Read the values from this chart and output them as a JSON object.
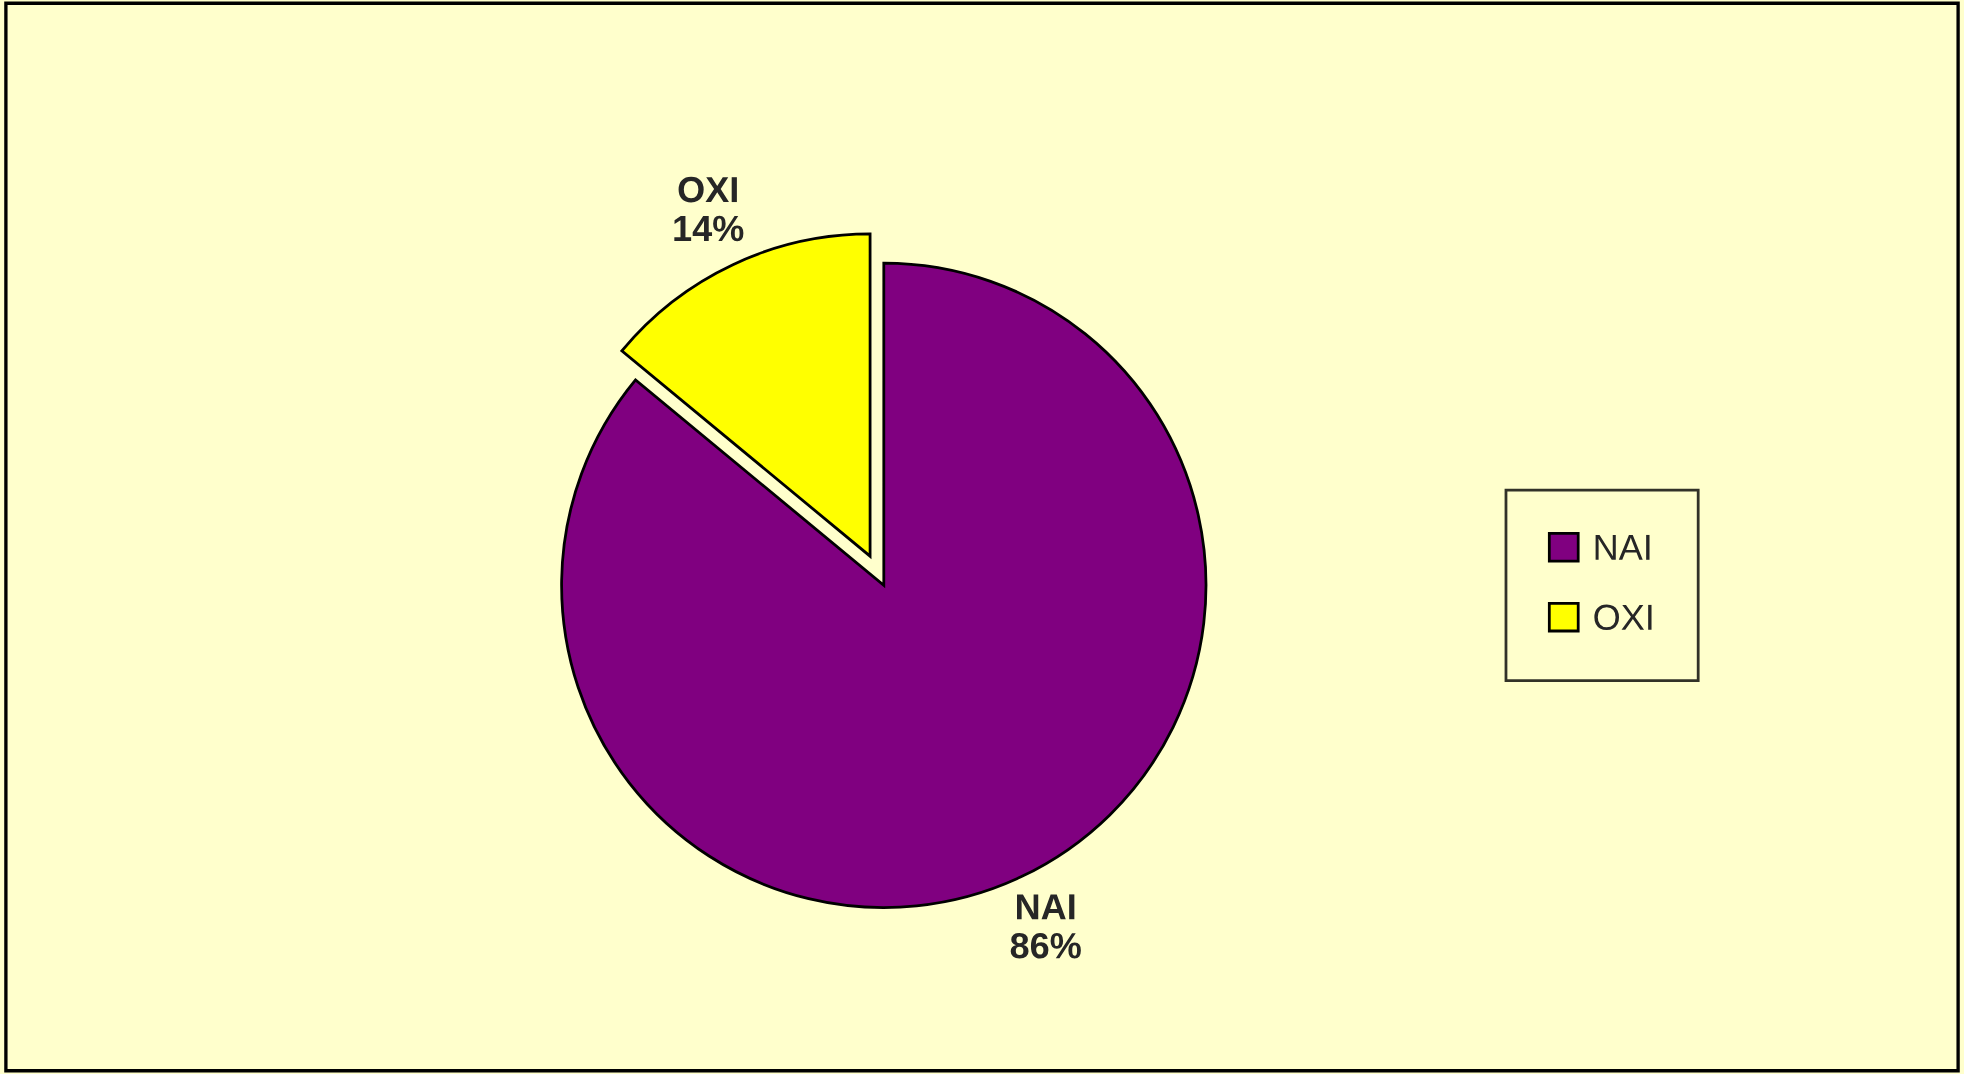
{
  "chart_data": {
    "type": "pie",
    "categories": [
      "NAI",
      "OXI"
    ],
    "values": [
      86,
      14
    ],
    "colors": [
      "#800080",
      "#ffff00"
    ],
    "value_labels": [
      "86%",
      "14%"
    ],
    "legend": "right"
  }
}
